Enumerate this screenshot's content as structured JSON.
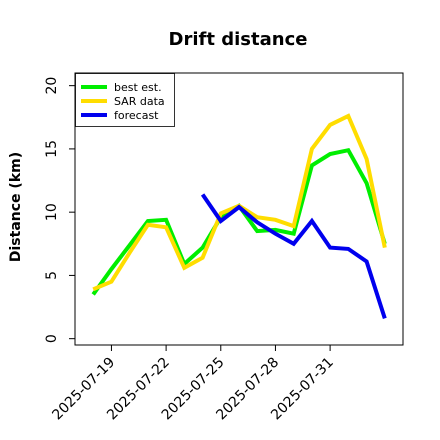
{
  "chart_data": {
    "type": "line",
    "title": "Drift distance",
    "xlabel": "",
    "ylabel": "Distance (km)",
    "ylim": [
      -0.5,
      21
    ],
    "xlim": [
      "2025-07-17",
      "2025-08-04"
    ],
    "grid": false,
    "legend_placement": "top-left",
    "x_tick_labels": [
      "2025-07-19",
      "2025-07-22",
      "2025-07-25",
      "2025-07-28",
      "2025-07-31"
    ],
    "y_tick_labels": [
      "0",
      "5",
      "10",
      "15",
      "20"
    ],
    "series": [
      {
        "name": "best est.",
        "color": "#00ee00",
        "x": [
          "2025-07-18",
          "2025-07-19",
          "2025-07-20",
          "2025-07-21",
          "2025-07-22",
          "2025-07-23",
          "2025-07-24",
          "2025-07-25",
          "2025-07-26",
          "2025-07-27",
          "2025-07-28",
          "2025-07-29",
          "2025-07-30",
          "2025-07-31",
          "2025-08-01",
          "2025-08-02",
          "2025-08-03"
        ],
        "values": [
          3.5,
          5.5,
          7.4,
          9.3,
          9.4,
          5.9,
          7.2,
          9.6,
          10.5,
          8.5,
          8.6,
          8.3,
          13.7,
          14.6,
          14.9,
          12.3,
          7.5
        ]
      },
      {
        "name": "SAR data",
        "color": "#ffdd00",
        "x": [
          "2025-07-18",
          "2025-07-19",
          "2025-07-20",
          "2025-07-21",
          "2025-07-22",
          "2025-07-23",
          "2025-07-24",
          "2025-07-25",
          "2025-07-26",
          "2025-07-27",
          "2025-07-28",
          "2025-07-29",
          "2025-07-30",
          "2025-07-31",
          "2025-08-01",
          "2025-08-02",
          "2025-08-03"
        ],
        "values": [
          3.9,
          4.5,
          6.8,
          9.0,
          8.8,
          5.6,
          6.4,
          9.9,
          10.5,
          9.6,
          9.4,
          8.9,
          15.0,
          16.9,
          17.6,
          14.2,
          7.2
        ]
      },
      {
        "name": "forecast",
        "color": "#0000ee",
        "x": [
          "2025-07-24",
          "2025-07-25",
          "2025-07-26",
          "2025-07-27",
          "2025-07-28",
          "2025-07-29",
          "2025-07-30",
          "2025-07-31",
          "2025-08-01",
          "2025-08-02",
          "2025-08-03"
        ],
        "values": [
          11.4,
          9.3,
          10.4,
          9.2,
          8.3,
          7.5,
          9.3,
          7.2,
          7.1,
          6.1,
          1.6
        ]
      }
    ]
  }
}
